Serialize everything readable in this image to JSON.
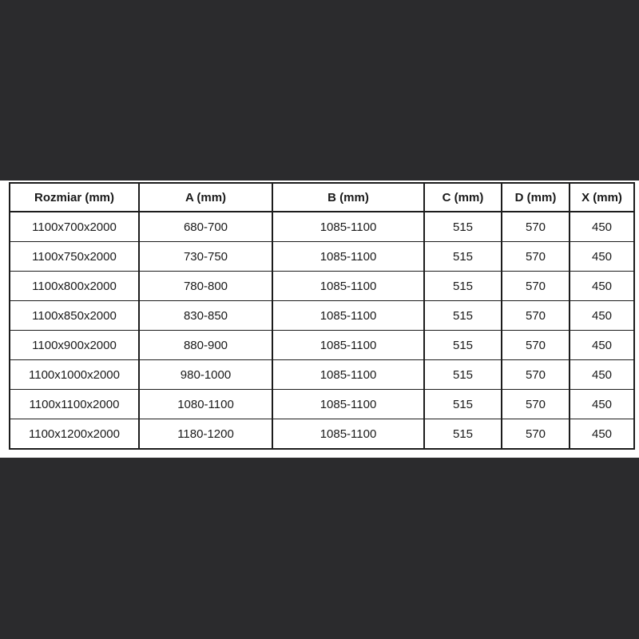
{
  "colors": {
    "page_background": "#2b2b2d",
    "panel_background": "#ffffff",
    "table_border": "#1c1c1c",
    "text": "#1a1a1a"
  },
  "chart_data": {
    "type": "table",
    "title": "",
    "columns": [
      "Rozmiar (mm)",
      "A (mm)",
      "B (mm)",
      "C (mm)",
      "D (mm)",
      "X (mm)"
    ],
    "rows": [
      [
        "1100x700x2000",
        "680-700",
        "1085-1100",
        "515",
        "570",
        "450"
      ],
      [
        "1100x750x2000",
        "730-750",
        "1085-1100",
        "515",
        "570",
        "450"
      ],
      [
        "1100x800x2000",
        "780-800",
        "1085-1100",
        "515",
        "570",
        "450"
      ],
      [
        "1100x850x2000",
        "830-850",
        "1085-1100",
        "515",
        "570",
        "450"
      ],
      [
        "1100x900x2000",
        "880-900",
        "1085-1100",
        "515",
        "570",
        "450"
      ],
      [
        "1100x1000x2000",
        "980-1000",
        "1085-1100",
        "515",
        "570",
        "450"
      ],
      [
        "1100x1100x2000",
        "1080-1100",
        "1085-1100",
        "515",
        "570",
        "450"
      ],
      [
        "1100x1200x2000",
        "1180-1200",
        "1085-1100",
        "515",
        "570",
        "450"
      ]
    ],
    "layout": {
      "grid": true,
      "header_row_bold": true,
      "cell_alignment": "center"
    }
  }
}
